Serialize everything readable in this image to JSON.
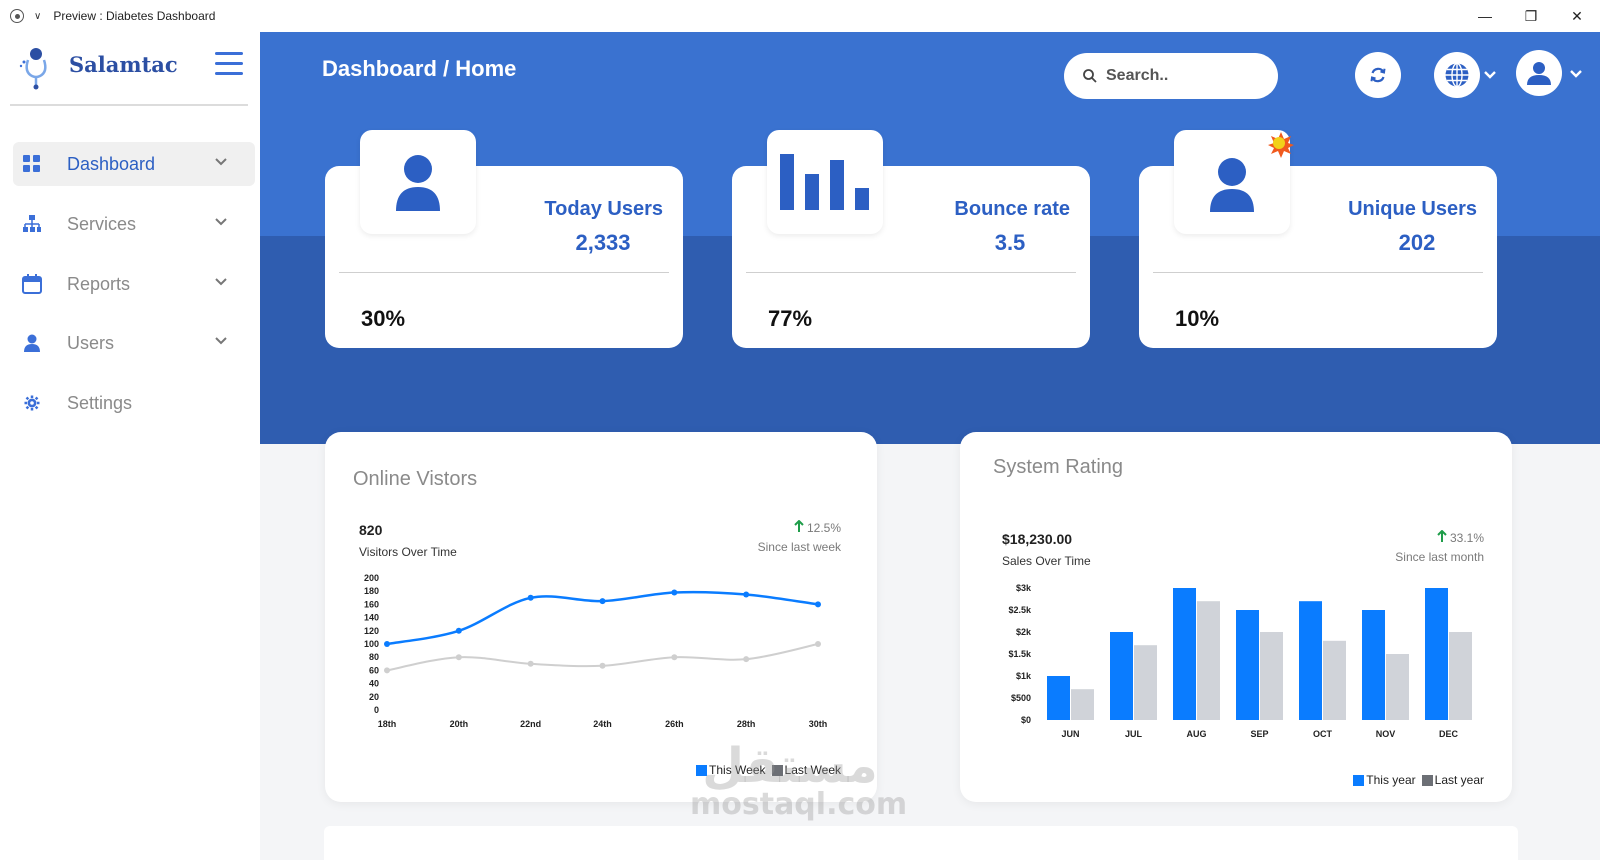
{
  "window": {
    "title": "Preview : Diabetes Dashboard",
    "controls": {
      "minimize": "—",
      "restore": "❐",
      "close": "✕"
    }
  },
  "sidebar": {
    "brand": "Salamtac",
    "items": [
      {
        "label": "Dashboard",
        "icon": "grid-icon",
        "active": true,
        "expandable": true
      },
      {
        "label": "Services",
        "icon": "sitemap-icon",
        "active": false,
        "expandable": true
      },
      {
        "label": "Reports",
        "icon": "calendar-icon",
        "active": false,
        "expandable": true
      },
      {
        "label": "Users",
        "icon": "user-icon",
        "active": false,
        "expandable": true
      },
      {
        "label": "Settings",
        "icon": "gear-icon",
        "active": false,
        "expandable": false
      }
    ]
  },
  "header": {
    "breadcrumb": "Dashboard / Home",
    "search_placeholder": "Search..",
    "refresh_icon": "refresh-icon",
    "language_icon": "globe-icon",
    "account_icon": "user-avatar-icon"
  },
  "stats": [
    {
      "label": "Today Users",
      "value": "2,333",
      "percent": "30%",
      "icon": "user-icon"
    },
    {
      "label": "Bounce rate",
      "value": "3.5",
      "percent": "77%",
      "icon": "bar-chart-icon"
    },
    {
      "label": "Unique Users",
      "value": "202",
      "percent": "10%",
      "icon": "user-badge-icon"
    }
  ],
  "online_visitors": {
    "title": "Online Vistors",
    "value": "820",
    "subtitle": "Visitors Over Time",
    "change": "12.5%",
    "since": "Since last week",
    "legend": [
      "This Week",
      "Last Week"
    ]
  },
  "system_rating": {
    "title": "System Rating",
    "value": "$18,230.00",
    "subtitle": "Sales Over Time",
    "change": "33.1%",
    "since": "Since last month",
    "legend": [
      "This year",
      "Last year"
    ]
  },
  "watermark": {
    "arabic": "مستقل",
    "latin": "mostaql.com"
  },
  "colors": {
    "primary": "#3a72d0",
    "primary_dark": "#2f5db0",
    "series_a": "#0a7cff",
    "series_b": "#d0d3d9",
    "line_b": "#cfcfcf",
    "up": "#1f9d4a"
  },
  "chart_data": [
    {
      "type": "line",
      "x": [
        "18th",
        "20th",
        "22nd",
        "24th",
        "26th",
        "28th",
        "30th"
      ],
      "series": [
        {
          "name": "This Week",
          "values": [
            100,
            120,
            170,
            165,
            178,
            175,
            160
          ]
        },
        {
          "name": "Last Week",
          "values": [
            60,
            80,
            70,
            67,
            80,
            77,
            100
          ]
        }
      ],
      "yticks": [
        "0",
        "20",
        "40",
        "60",
        "80",
        "100",
        "120",
        "140",
        "160",
        "180",
        "200"
      ],
      "ylim": [
        0,
        200
      ],
      "legend": "bottom-right"
    },
    {
      "type": "bar",
      "categories": [
        "JUN",
        "JUL",
        "AUG",
        "SEP",
        "OCT",
        "NOV",
        "DEC"
      ],
      "series": [
        {
          "name": "This year",
          "values": [
            1000,
            2000,
            3000,
            2500,
            2700,
            2500,
            3000
          ]
        },
        {
          "name": "Last year",
          "values": [
            700,
            1700,
            2700,
            2000,
            1800,
            1500,
            2000
          ]
        }
      ],
      "yticks": [
        "$0",
        "$500",
        "$1k",
        "$1.5k",
        "$2k",
        "$2.5k",
        "$3k"
      ],
      "ylim": [
        0,
        3000
      ],
      "legend": "bottom-right"
    }
  ]
}
